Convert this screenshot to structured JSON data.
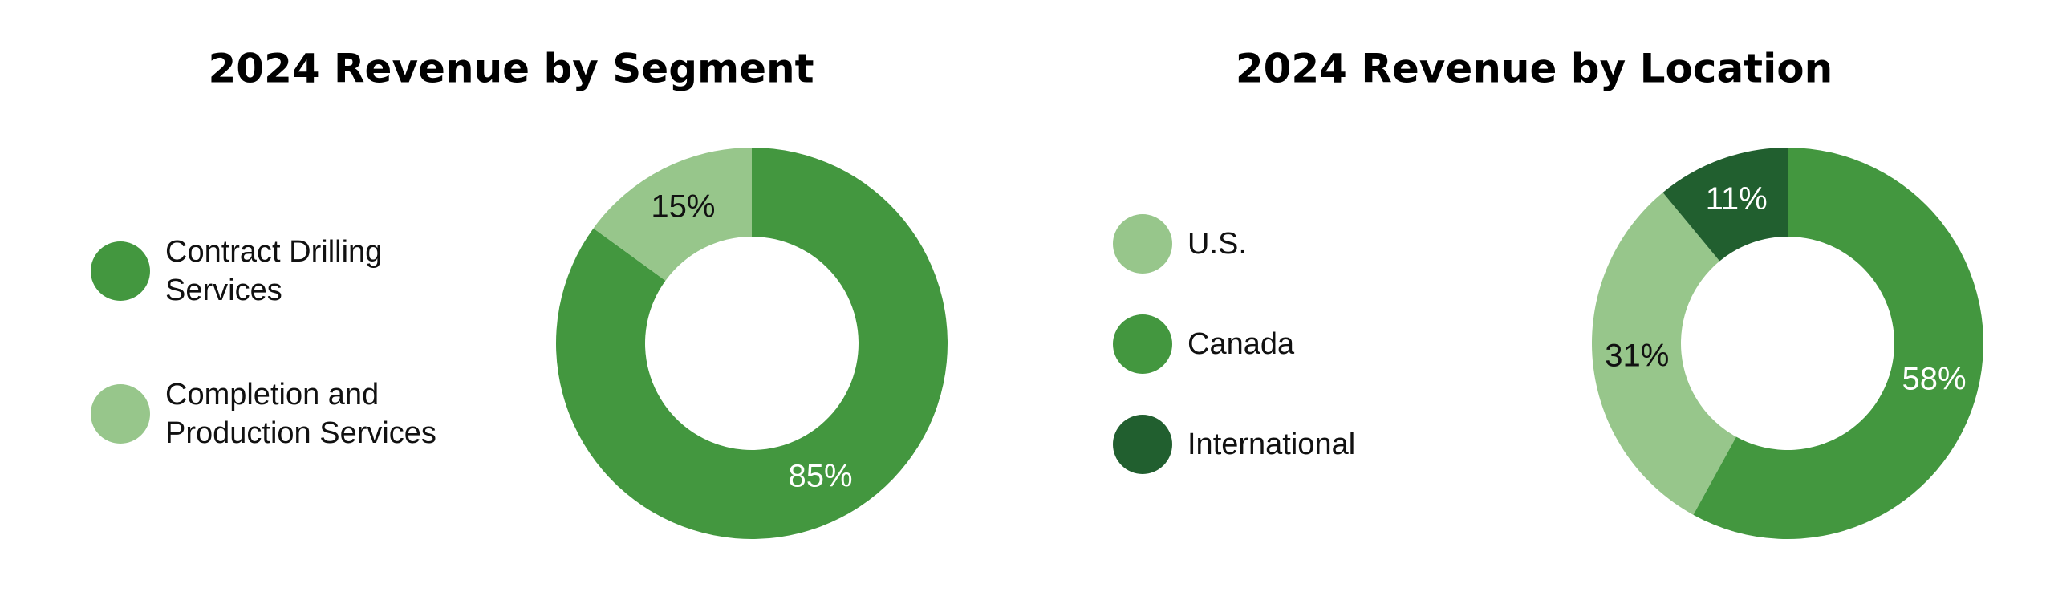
{
  "chart_data": [
    {
      "type": "donut",
      "title": "2024 Revenue by Segment",
      "categories": [
        "Contract Drilling Services",
        "Completion and Production Services"
      ],
      "values": [
        85,
        15
      ],
      "value_labels": [
        "85%",
        "15%"
      ],
      "colors": [
        "#43973f",
        "#97c68b"
      ]
    },
    {
      "type": "donut",
      "title": "2024 Revenue by Location",
      "categories": [
        "U.S.",
        "Canada",
        "International"
      ],
      "values": [
        31,
        58,
        11
      ],
      "value_labels": [
        "31%",
        "58%",
        "11%"
      ],
      "colors": [
        "#97c68b",
        "#43973f",
        "#215f2f"
      ]
    }
  ]
}
